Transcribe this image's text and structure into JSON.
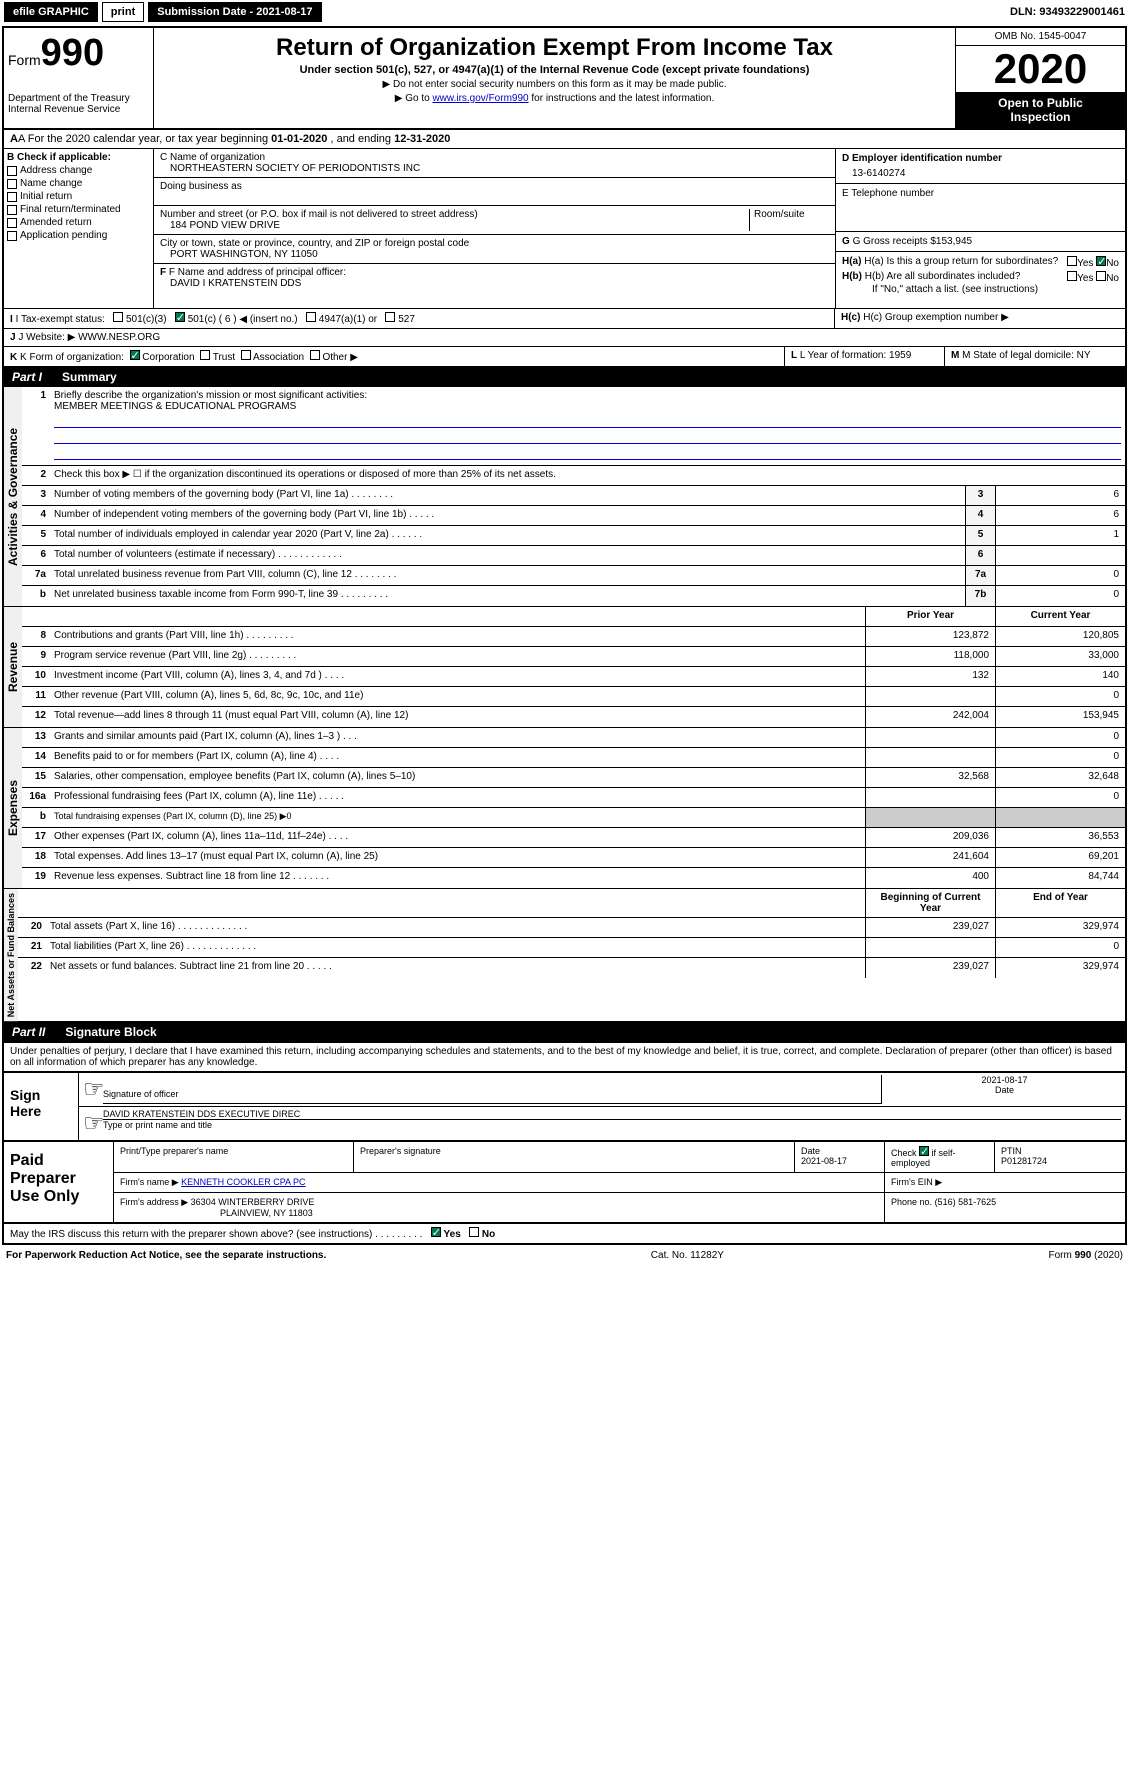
{
  "header": {
    "efile": "efile GRAPHIC",
    "print": "print",
    "sub_label": "Submission Date - 2021-08-17",
    "dln": "DLN: 93493229001461"
  },
  "top": {
    "form": "Form",
    "num": "990",
    "dept": "Department of the Treasury",
    "irs": "Internal Revenue Service",
    "title": "Return of Organization Exempt From Income Tax",
    "subtitle": "Under section 501(c), 527, or 4947(a)(1) of the Internal Revenue Code (except private foundations)",
    "instr1": "▶ Do not enter social security numbers on this form as it may be made public.",
    "instr2_a": "▶ Go to ",
    "instr2_link": "www.irs.gov/Form990",
    "instr2_b": " for instructions and the latest information.",
    "omb": "OMB No. 1545-0047",
    "year": "2020",
    "public1": "Open to Public",
    "public2": "Inspection"
  },
  "rowA": {
    "text_a": "A For the 2020 calendar year, or tax year beginning ",
    "date1": "01-01-2020",
    "text_b": " , and ending ",
    "date2": "12-31-2020"
  },
  "colB": {
    "header": "B Check if applicable:",
    "items": [
      "Address change",
      "Name change",
      "Initial return",
      "Final return/terminated",
      "Amended return",
      "Application pending"
    ]
  },
  "colC": {
    "name_label": "C Name of organization",
    "name": "NORTHEASTERN SOCIETY OF PERIODONTISTS INC",
    "dba_label": "Doing business as",
    "addr_label": "Number and street (or P.O. box if mail is not delivered to street address)",
    "room_label": "Room/suite",
    "addr": "184 POND VIEW DRIVE",
    "city_label": "City or town, state or province, country, and ZIP or foreign postal code",
    "city": "PORT WASHINGTON, NY  11050",
    "f_label": "F Name and address of principal officer:",
    "f_name": "DAVID I KRATENSTEIN DDS"
  },
  "colD": {
    "d_label": "D Employer identification number",
    "ein": "13-6140274",
    "e_label": "E Telephone number",
    "g_label": "G Gross receipts $",
    "g_val": "153,945"
  },
  "colH": {
    "ha": "H(a)  Is this a group return for subordinates?",
    "hb": "H(b)  Are all subordinates included?",
    "hb_note": "If \"No,\" attach a list. (see instructions)",
    "hc": "H(c)  Group exemption number ▶",
    "yes": "Yes",
    "no": "No"
  },
  "rowI": {
    "label": "I  Tax-exempt status:",
    "o1": "501(c)(3)",
    "o2": "501(c) ( 6 ) ◀ (insert no.)",
    "o3": "4947(a)(1) or",
    "o4": "527"
  },
  "rowJ": {
    "label": "J  Website: ▶",
    "val": "WWW.NESP.ORG"
  },
  "rowK": {
    "label": "K Form of organization:",
    "o1": "Corporation",
    "o2": "Trust",
    "o3": "Association",
    "o4": "Other ▶",
    "l_label": "L Year of formation:",
    "l_val": "1959",
    "m_label": "M State of legal domicile:",
    "m_val": "NY"
  },
  "part1": {
    "label": "Part I",
    "title": "Summary"
  },
  "governance": {
    "label": "Activities & Governance",
    "l1": "Briefly describe the organization's mission or most significant activities:",
    "l1_val": "MEMBER MEETINGS & EDUCATIONAL PROGRAMS",
    "l2": "Check this box ▶ ☐  if the organization discontinued its operations or disposed of more than 25% of its net assets.",
    "rows": [
      {
        "n": "3",
        "t": "Number of voting members of the governing body (Part VI, line 1a)   .    .    .    .    .    .    .    .",
        "b": "3",
        "v": "6"
      },
      {
        "n": "4",
        "t": "Number of independent voting members of the governing body (Part VI, line 1b)   .    .    .    .    .",
        "b": "4",
        "v": "6"
      },
      {
        "n": "5",
        "t": "Total number of individuals employed in calendar year 2020 (Part V, line 2a)   .    .    .    .    .    .",
        "b": "5",
        "v": "1"
      },
      {
        "n": "6",
        "t": "Total number of volunteers (estimate if necessary)   .    .    .    .    .    .    .    .    .    .    .    .",
        "b": "6",
        "v": ""
      },
      {
        "n": "7a",
        "t": "Total unrelated business revenue from Part VIII, column (C), line 12   .    .    .    .    .    .    .    .",
        "b": "7a",
        "v": "0"
      },
      {
        "n": "b",
        "t": "Net unrelated business taxable income from Form 990-T, line 39   .    .    .    .    .    .    .    .    .",
        "b": "7b",
        "v": "0"
      }
    ]
  },
  "revenue": {
    "label": "Revenue",
    "h1": "Prior Year",
    "h2": "Current Year",
    "rows": [
      {
        "n": "8",
        "t": "Contributions and grants (Part VIII, line 1h)   .    .    .    .    .    .    .    .    .",
        "v1": "123,872",
        "v2": "120,805"
      },
      {
        "n": "9",
        "t": "Program service revenue (Part VIII, line 2g)   .    .    .    .    .    .    .    .    .",
        "v1": "118,000",
        "v2": "33,000"
      },
      {
        "n": "10",
        "t": "Investment income (Part VIII, column (A), lines 3, 4, and 7d )   .    .    .    .",
        "v1": "132",
        "v2": "140"
      },
      {
        "n": "11",
        "t": "Other revenue (Part VIII, column (A), lines 5, 6d, 8c, 9c, 10c, and 11e)",
        "v1": "",
        "v2": "0"
      },
      {
        "n": "12",
        "t": "Total revenue—add lines 8 through 11 (must equal Part VIII, column (A), line 12)",
        "v1": "242,004",
        "v2": "153,945"
      }
    ]
  },
  "expenses": {
    "label": "Expenses",
    "rows": [
      {
        "n": "13",
        "t": "Grants and similar amounts paid (Part IX, column (A), lines 1–3 )   .    .    .",
        "v1": "",
        "v2": "0"
      },
      {
        "n": "14",
        "t": "Benefits paid to or for members (Part IX, column (A), line 4)   .    .    .    .",
        "v1": "",
        "v2": "0"
      },
      {
        "n": "15",
        "t": "Salaries, other compensation, employee benefits (Part IX, column (A), lines 5–10)",
        "v1": "32,568",
        "v2": "32,648"
      },
      {
        "n": "16a",
        "t": "Professional fundraising fees (Part IX, column (A), line 11e)   .    .    .    .    .",
        "v1": "",
        "v2": "0"
      },
      {
        "n": "b",
        "t": "Total fundraising expenses (Part IX, column (D), line 25) ▶0",
        "v1": null,
        "v2": null
      },
      {
        "n": "17",
        "t": "Other expenses (Part IX, column (A), lines 11a–11d, 11f–24e)   .    .    .    .",
        "v1": "209,036",
        "v2": "36,553"
      },
      {
        "n": "18",
        "t": "Total expenses. Add lines 13–17 (must equal Part IX, column (A), line 25)",
        "v1": "241,604",
        "v2": "69,201"
      },
      {
        "n": "19",
        "t": "Revenue less expenses. Subtract line 18 from line 12   .    .    .    .    .    .    .",
        "v1": "400",
        "v2": "84,744"
      }
    ]
  },
  "netassets": {
    "label": "Net Assets or Fund Balances",
    "h1": "Beginning of Current Year",
    "h2": "End of Year",
    "rows": [
      {
        "n": "20",
        "t": "Total assets (Part X, line 16)   .    .    .    .    .    .    .    .    .    .    .    .    .",
        "v1": "239,027",
        "v2": "329,974"
      },
      {
        "n": "21",
        "t": "Total liabilities (Part X, line 26)   .    .    .    .    .    .    .    .    .    .    .    .    .",
        "v1": "",
        "v2": "0"
      },
      {
        "n": "22",
        "t": "Net assets or fund balances. Subtract line 21 from line 20   .    .    .    .    .",
        "v1": "239,027",
        "v2": "329,974"
      }
    ]
  },
  "part2": {
    "label": "Part II",
    "title": "Signature Block"
  },
  "perjury": "Under penalties of perjury, I declare that I have examined this return, including accompanying schedules and statements, and to the best of my knowledge and belief, it is true, correct, and complete. Declaration of preparer (other than officer) is based on all information of which preparer has any knowledge.",
  "sign": {
    "here": "Sign Here",
    "sig_label": "Signature of officer",
    "date": "2021-08-17",
    "date_label": "Date",
    "name": "DAVID KRATENSTEIN DDS  EXECUTIVE DIREC",
    "name_label": "Type or print name and title"
  },
  "paid": {
    "label": "Paid Preparer Use Only",
    "h1": "Print/Type preparer's name",
    "h2": "Preparer's signature",
    "h3": "Date",
    "date": "2021-08-17",
    "h4a": "Check",
    "h4b": "if self-employed",
    "h5": "PTIN",
    "ptin": "P01281724",
    "firm_name_l": "Firm's name    ▶",
    "firm_name": "KENNETH COOKLER CPA PC",
    "firm_ein_l": "Firm's EIN ▶",
    "firm_addr_l": "Firm's address ▶",
    "firm_addr1": "36304 WINTERBERRY DRIVE",
    "firm_addr2": "PLAINVIEW, NY  11803",
    "phone_l": "Phone no.",
    "phone": "(516) 581-7625"
  },
  "discuss": {
    "text": "May the IRS discuss this return with the preparer shown above? (see instructions)   .    .    .    .    .    .    .    .    .",
    "yes": "Yes",
    "no": "No"
  },
  "footer": {
    "left": "For Paperwork Reduction Act Notice, see the separate instructions.",
    "mid": "Cat. No. 11282Y",
    "right": "Form 990 (2020)"
  }
}
